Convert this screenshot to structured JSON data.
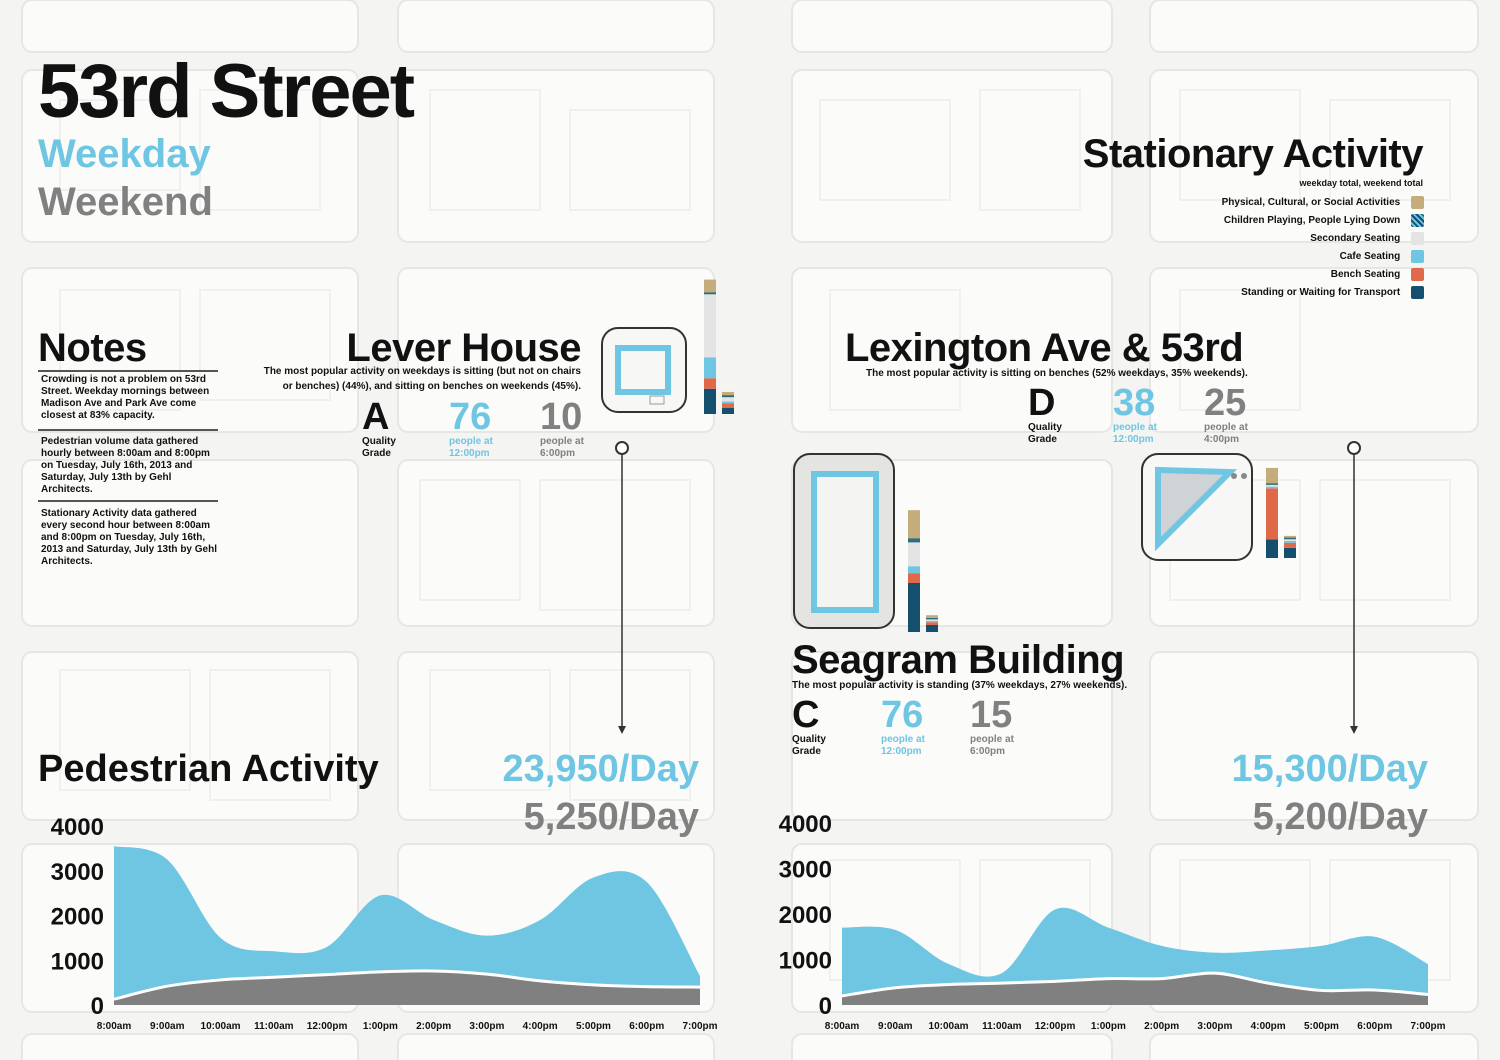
{
  "header": {
    "title": "53rd Street",
    "legend_weekday": "Weekday",
    "legend_weekend": "Weekend"
  },
  "colors": {
    "weekday": "#6ec6e3",
    "weekend": "#808080",
    "physical": "#c5ad7b",
    "children": "#2c6f7a",
    "secondary": "#e4e4e4",
    "cafe": "#6ec6e3",
    "bench": "#e0694a",
    "standing": "#14506e"
  },
  "stationary": {
    "title": "Stationary Activity",
    "subtitle": "weekday total, weekend total",
    "legend": [
      {
        "label": "Physical, Cultural, or Social Activities",
        "key": "physical"
      },
      {
        "label": "Children Playing, People Lying Down",
        "key": "children"
      },
      {
        "label": "Secondary Seating",
        "key": "secondary"
      },
      {
        "label": "Cafe Seating",
        "key": "cafe"
      },
      {
        "label": "Bench Seating",
        "key": "bench"
      },
      {
        "label": "Standing or Waiting for Transport",
        "key": "standing"
      }
    ]
  },
  "notes": {
    "title": "Notes",
    "items": [
      "Crowding is not a problem on 53rd Street. Weekday mornings between Madison Ave and Park Ave come closest at 83% capacity.",
      "Pedestrian volume data gathered hourly between 8:00am and 8:00pm on Tuesday, July 16th, 2013 and Saturday, July 13th by Gehl Architects.",
      "Stationary Activity data gathered every second hour between 8:00am and 8:00pm on Tuesday, July 16th, 2013 and Saturday, July 13th by Gehl Architects."
    ]
  },
  "sites": {
    "lever": {
      "name": "Lever House",
      "desc1": "The most popular activity on weekdays is sitting (but not on chairs",
      "desc2": "or benches) (44%), and sitting on benches on weekends (45%).",
      "grade": "A",
      "grade_label1": "Quality",
      "grade_label2": "Grade",
      "weekday_count": "76",
      "weekday_label1": "people at",
      "weekday_label2": "12:00pm",
      "weekend_count": "10",
      "weekend_label1": "people at",
      "weekend_label2": "6:00pm"
    },
    "lexington": {
      "name": "Lexington Ave & 53rd",
      "desc": "The most popular activity is sitting on benches (52% weekdays, 35% weekends).",
      "grade": "D",
      "grade_label1": "Quality",
      "grade_label2": "Grade",
      "weekday_count": "38",
      "weekday_label1": "people at",
      "weekday_label2": "12:00pm",
      "weekend_count": "25",
      "weekend_label1": "people at",
      "weekend_label2": "4:00pm"
    },
    "seagram": {
      "name": "Seagram Building",
      "desc": "The most popular activity is standing (37% weekdays, 27% weekends).",
      "grade": "C",
      "grade_label1": "Quality",
      "grade_label2": "Grade",
      "weekday_count": "76",
      "weekday_label1": "people at",
      "weekday_label2": "12:00pm",
      "weekend_count": "15",
      "weekend_label1": "people at",
      "weekend_label2": "6:00pm"
    }
  },
  "pedestrian": {
    "title": "Pedestrian Activity",
    "left_weekday_total": "23,950/Day",
    "left_weekend_total": "5,250/Day",
    "right_weekday_total": "15,300/Day",
    "right_weekend_total": "5,200/Day"
  },
  "chart_data": [
    {
      "type": "area",
      "title": "Pedestrian Activity",
      "x": [
        "8:00am",
        "9:00am",
        "10:00am",
        "11:00am",
        "12:00pm",
        "1:00pm",
        "2:00pm",
        "3:00pm",
        "4:00pm",
        "5:00pm",
        "6:00pm",
        "7:00pm"
      ],
      "yticks": [
        0,
        1000,
        2000,
        3000,
        4000
      ],
      "ylim": [
        0,
        4000
      ],
      "series": [
        {
          "name": "Weekday",
          "values": [
            3550,
            3250,
            1500,
            1200,
            1300,
            2450,
            1900,
            1550,
            1900,
            2850,
            2750,
            650
          ]
        },
        {
          "name": "Weekend",
          "values": [
            130,
            420,
            560,
            620,
            680,
            740,
            760,
            690,
            540,
            450,
            410,
            400
          ]
        }
      ]
    },
    {
      "type": "area",
      "x": [
        "8:00am",
        "9:00am",
        "10:00am",
        "11:00am",
        "12:00pm",
        "1:00pm",
        "2:00pm",
        "3:00pm",
        "4:00pm",
        "5:00pm",
        "6:00pm",
        "7:00pm"
      ],
      "yticks": [
        0,
        1000,
        2000,
        3000,
        4000
      ],
      "ylim": [
        0,
        4000
      ],
      "series": [
        {
          "name": "Weekday",
          "values": [
            1700,
            1650,
            900,
            700,
            2100,
            1700,
            1300,
            1150,
            1200,
            1300,
            1500,
            900
          ]
        },
        {
          "name": "Weekend",
          "values": [
            200,
            380,
            450,
            480,
            520,
            580,
            580,
            700,
            480,
            320,
            330,
            230
          ]
        }
      ]
    },
    {
      "type": "bar",
      "site": "Lever House",
      "series": [
        {
          "name": "weekday total",
          "stack": {
            "physical": 12,
            "children": 2,
            "secondary": 60,
            "cafe": 20,
            "bench": 10,
            "standing": 24
          }
        },
        {
          "name": "weekend total",
          "stack": {
            "physical": 3,
            "children": 2,
            "secondary": 4,
            "cafe": 2,
            "bench": 4,
            "standing": 6
          }
        }
      ]
    },
    {
      "type": "bar",
      "site": "Seagram Building",
      "series": [
        {
          "name": "weekday total",
          "stack": {
            "physical": 20,
            "children": 3,
            "secondary": 17,
            "cafe": 5,
            "bench": 7,
            "standing": 35
          }
        },
        {
          "name": "weekend total",
          "stack": {
            "physical": 2,
            "children": 1,
            "secondary": 1,
            "cafe": 1,
            "bench": 2,
            "standing": 5
          }
        }
      ]
    },
    {
      "type": "bar",
      "site": "Lexington Ave & 53rd",
      "series": [
        {
          "name": "weekday total",
          "stack": {
            "physical": 9,
            "children": 1,
            "secondary": 1,
            "cafe": 1,
            "bench": 30,
            "standing": 11
          }
        },
        {
          "name": "weekend total",
          "stack": {
            "physical": 1,
            "children": 1,
            "secondary": 1,
            "cafe": 1,
            "bench": 3,
            "standing": 6
          }
        }
      ]
    }
  ]
}
